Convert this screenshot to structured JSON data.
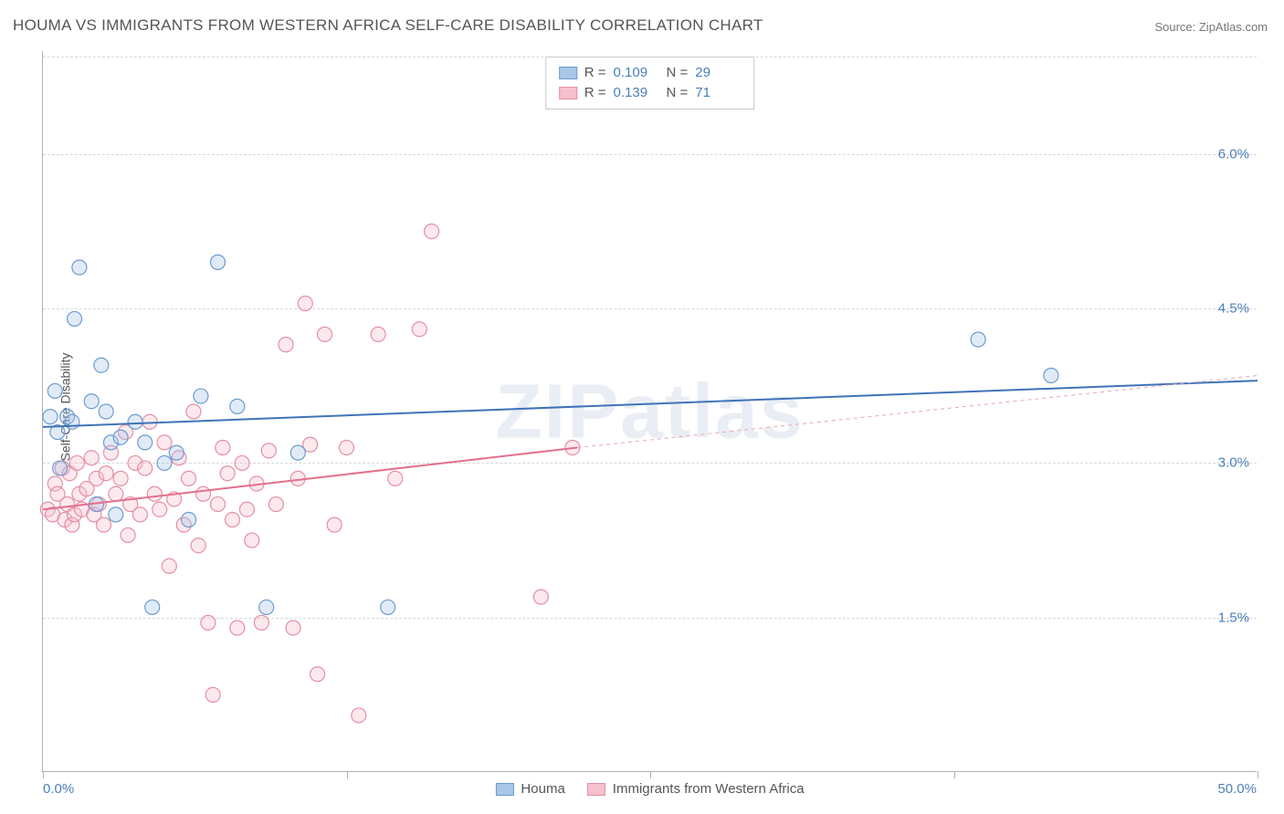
{
  "title": "HOUMA VS IMMIGRANTS FROM WESTERN AFRICA SELF-CARE DISABILITY CORRELATION CHART",
  "source": "Source: ZipAtlas.com",
  "watermark": "ZIPatlas",
  "y_axis_label": "Self-Care Disability",
  "chart": {
    "type": "scatter",
    "xlim": [
      0,
      50
    ],
    "ylim": [
      0,
      7
    ],
    "x_ticks": [
      0,
      50
    ],
    "x_tick_labels": [
      "0.0%",
      "50.0%"
    ],
    "x_minor_ticks": [
      12.5,
      25,
      37.5
    ],
    "y_gridlines": [
      1.5,
      3.0,
      4.5,
      6.0
    ],
    "y_tick_labels": [
      "1.5%",
      "3.0%",
      "4.5%",
      "6.0%"
    ],
    "background_color": "#ffffff",
    "grid_color": "#d6d6d6",
    "axis_color": "#b0b0b0",
    "tick_label_color": "#4a7ebb",
    "marker_radius": 8,
    "marker_stroke_width": 1.2,
    "marker_fill_opacity": 0.35,
    "series": [
      {
        "name": "Houma",
        "color_stroke": "#6b9bd1",
        "color_fill": "#a9c6e8",
        "R": "0.109",
        "N": "29",
        "trend": {
          "x1": 0,
          "y1": 3.35,
          "x2": 50,
          "y2": 3.8,
          "color": "#3f73b8",
          "width": 2
        },
        "points": [
          [
            0.3,
            3.45
          ],
          [
            0.5,
            3.7
          ],
          [
            0.6,
            3.3
          ],
          [
            0.7,
            2.95
          ],
          [
            1.0,
            3.45
          ],
          [
            1.2,
            3.4
          ],
          [
            1.3,
            4.4
          ],
          [
            1.5,
            4.9
          ],
          [
            2.0,
            3.6
          ],
          [
            2.2,
            2.6
          ],
          [
            2.4,
            3.95
          ],
          [
            2.6,
            3.5
          ],
          [
            2.8,
            3.2
          ],
          [
            3.0,
            2.5
          ],
          [
            3.2,
            3.25
          ],
          [
            3.8,
            3.4
          ],
          [
            4.2,
            3.2
          ],
          [
            4.5,
            1.6
          ],
          [
            5.0,
            3.0
          ],
          [
            5.5,
            3.1
          ],
          [
            6.0,
            2.45
          ],
          [
            6.5,
            3.65
          ],
          [
            7.2,
            4.95
          ],
          [
            8.0,
            3.55
          ],
          [
            9.2,
            1.6
          ],
          [
            10.5,
            3.1
          ],
          [
            14.2,
            1.6
          ],
          [
            38.5,
            4.2
          ],
          [
            41.5,
            3.85
          ]
        ]
      },
      {
        "name": "Immigrants from Western Africa",
        "color_stroke": "#e58fa3",
        "color_fill": "#f6c0cd",
        "R": "0.139",
        "N": "71",
        "trend_solid": {
          "x1": 0,
          "y1": 2.55,
          "x2": 22,
          "y2": 3.15,
          "color": "#e36f8c",
          "width": 2
        },
        "trend_dashed": {
          "x1": 22,
          "y1": 3.15,
          "x2": 50,
          "y2": 3.85,
          "color": "#e9a5b5",
          "width": 1,
          "dash": "4,4"
        },
        "points": [
          [
            0.2,
            2.55
          ],
          [
            0.4,
            2.5
          ],
          [
            0.5,
            2.8
          ],
          [
            0.6,
            2.7
          ],
          [
            0.8,
            2.95
          ],
          [
            0.9,
            2.45
          ],
          [
            1.0,
            2.6
          ],
          [
            1.1,
            2.9
          ],
          [
            1.2,
            2.4
          ],
          [
            1.3,
            2.5
          ],
          [
            1.4,
            3.0
          ],
          [
            1.5,
            2.7
          ],
          [
            1.6,
            2.55
          ],
          [
            1.8,
            2.75
          ],
          [
            2.0,
            3.05
          ],
          [
            2.1,
            2.5
          ],
          [
            2.2,
            2.85
          ],
          [
            2.3,
            2.6
          ],
          [
            2.5,
            2.4
          ],
          [
            2.6,
            2.9
          ],
          [
            2.8,
            3.1
          ],
          [
            3.0,
            2.7
          ],
          [
            3.2,
            2.85
          ],
          [
            3.4,
            3.3
          ],
          [
            3.5,
            2.3
          ],
          [
            3.6,
            2.6
          ],
          [
            3.8,
            3.0
          ],
          [
            4.0,
            2.5
          ],
          [
            4.2,
            2.95
          ],
          [
            4.4,
            3.4
          ],
          [
            4.6,
            2.7
          ],
          [
            4.8,
            2.55
          ],
          [
            5.0,
            3.2
          ],
          [
            5.2,
            2.0
          ],
          [
            5.4,
            2.65
          ],
          [
            5.6,
            3.05
          ],
          [
            5.8,
            2.4
          ],
          [
            6.0,
            2.85
          ],
          [
            6.2,
            3.5
          ],
          [
            6.4,
            2.2
          ],
          [
            6.6,
            2.7
          ],
          [
            6.8,
            1.45
          ],
          [
            7.0,
            0.75
          ],
          [
            7.2,
            2.6
          ],
          [
            7.4,
            3.15
          ],
          [
            7.6,
            2.9
          ],
          [
            7.8,
            2.45
          ],
          [
            8.0,
            1.4
          ],
          [
            8.2,
            3.0
          ],
          [
            8.4,
            2.55
          ],
          [
            8.6,
            2.25
          ],
          [
            8.8,
            2.8
          ],
          [
            9.0,
            1.45
          ],
          [
            9.3,
            3.12
          ],
          [
            9.6,
            2.6
          ],
          [
            10.0,
            4.15
          ],
          [
            10.3,
            1.4
          ],
          [
            10.5,
            2.85
          ],
          [
            10.8,
            4.55
          ],
          [
            11.0,
            3.18
          ],
          [
            11.3,
            0.95
          ],
          [
            11.6,
            4.25
          ],
          [
            12.0,
            2.4
          ],
          [
            12.5,
            3.15
          ],
          [
            13.0,
            0.55
          ],
          [
            13.8,
            4.25
          ],
          [
            14.5,
            2.85
          ],
          [
            15.5,
            4.3
          ],
          [
            16.0,
            5.25
          ],
          [
            20.5,
            1.7
          ],
          [
            21.8,
            3.15
          ]
        ]
      }
    ]
  },
  "legend_top": {
    "label_R": "R =",
    "label_N": "N ="
  },
  "legend_bottom": [
    {
      "label": "Houma",
      "stroke": "#6b9bd1",
      "fill": "#a9c6e8"
    },
    {
      "label": "Immigrants from Western Africa",
      "stroke": "#e58fa3",
      "fill": "#f6c0cd"
    }
  ]
}
